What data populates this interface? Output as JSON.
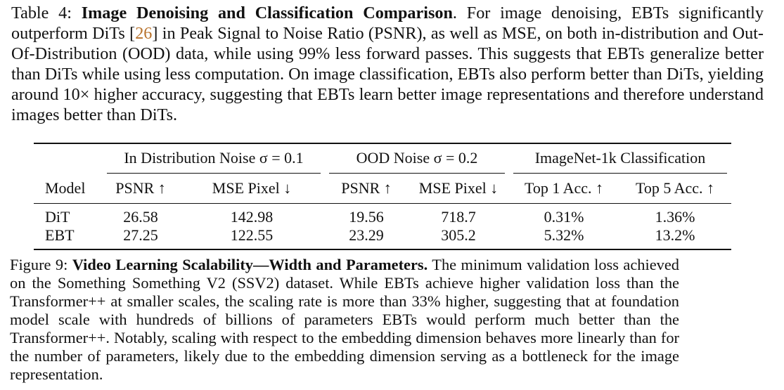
{
  "table_caption": {
    "label": "Table 4:",
    "title": "Image Denoising and Classification Comparison",
    "text_before_cite": ". For image denoising, EBTs significantly outperform DiTs [",
    "cite": "26",
    "text_after_cite": "] in Peak Signal to Noise Ratio (PSNR), as well as MSE, on both in-distribution and Out-Of-Distribution (OOD) data, while using 99% less forward passes. This suggests that EBTs generalize better than DiTs while using less computation. On image classification, EBTs also perform better than DiTs, yielding around 10× higher accuracy, suggesting that EBTs learn better image representations and therefore understand images better than DiTs."
  },
  "table": {
    "groups": {
      "in_dist": "In Distribution Noise σ = 0.1",
      "ood": "OOD Noise σ = 0.2",
      "imagenet": "ImageNet-1k Classification"
    },
    "columns": {
      "model": "Model",
      "psnr_in": "PSNR ↑",
      "mse_in": "MSE Pixel ↓",
      "psnr_ood": "PSNR ↑",
      "mse_ood": "MSE Pixel ↓",
      "top1": "Top 1 Acc. ↑",
      "top5": "Top 5 Acc. ↑"
    },
    "rows": [
      {
        "model": "DiT",
        "psnr_in": "26.58",
        "mse_in": "142.98",
        "psnr_ood": "19.56",
        "mse_ood": "718.7",
        "top1": "0.31%",
        "top5": "1.36%"
      },
      {
        "model": "EBT",
        "psnr_in": "27.25",
        "mse_in": "122.55",
        "psnr_ood": "23.29",
        "mse_ood": "305.2",
        "top1": "5.32%",
        "top5": "13.2%"
      }
    ]
  },
  "figure_caption": {
    "label": "Figure 9:",
    "title": "Video Learning Scalability—Width and Parameters.",
    "text": "The minimum validation loss achieved on the Something Something V2 (SSV2) dataset. While EBTs achieve higher validation loss than the Transformer++ at smaller scales, the scaling rate is more than 33% higher, suggesting that at foundation model scale with hundreds of billions of parameters EBTs would perform much better than the Transformer++. Notably, scaling with respect to the embedding dimension behaves more linearly than for the number of parameters, likely due to the embedding dimension serving as a bottleneck for the image representation."
  }
}
